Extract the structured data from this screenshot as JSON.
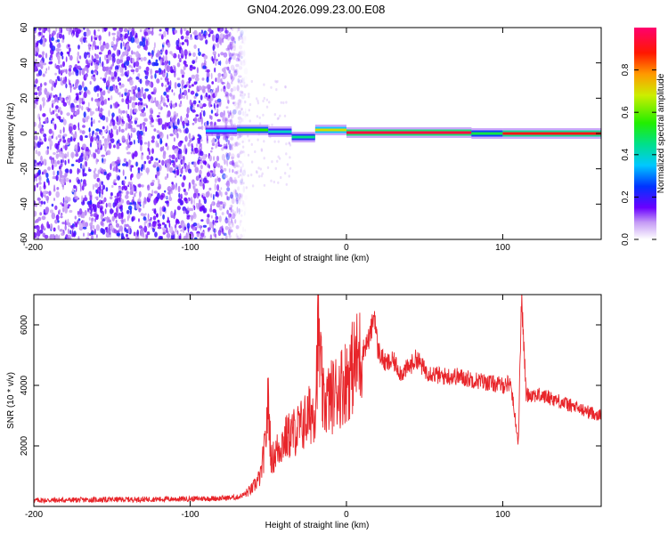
{
  "figure": {
    "title": "GN04.2026.099.23.00.E08"
  },
  "chart_data": [
    {
      "type": "heatmap",
      "xlabel": "Height of straight line (km)",
      "ylabel": "Frequency (Hz)",
      "xlim": [
        -200,
        163
      ],
      "ylim": [
        -60,
        60
      ],
      "xticks": [
        -200,
        -100,
        0,
        100
      ],
      "yticks": [
        -60,
        -40,
        -20,
        0,
        20,
        40,
        60
      ],
      "colorbar": {
        "label": "Normalized spectral amplitude",
        "range": [
          0,
          1
        ],
        "ticks": [
          "0.0",
          "0.2",
          "0.4",
          "0.6",
          "0.8"
        ]
      },
      "noise_region_x": [
        -200,
        -70
      ],
      "carrier_segments": [
        {
          "x0": -90,
          "x1": -70,
          "y": 1.5,
          "amp": 0.35
        },
        {
          "x0": -70,
          "x1": -50,
          "y": 2.0,
          "amp": 0.55
        },
        {
          "x0": -50,
          "x1": -35,
          "y": 1.0,
          "amp": 0.4
        },
        {
          "x0": -35,
          "x1": -20,
          "y": -2.0,
          "amp": 0.45
        },
        {
          "x0": -20,
          "x1": 0,
          "y": 2.0,
          "amp": 0.7
        },
        {
          "x0": 0,
          "x1": 80,
          "y": 0.5,
          "amp": 0.95
        },
        {
          "x0": 80,
          "x1": 100,
          "y": 0.0,
          "amp": 0.5
        },
        {
          "x0": 100,
          "x1": 163,
          "y": 0.0,
          "amp": 0.9
        }
      ]
    },
    {
      "type": "line",
      "xlabel": "Height of straight line (km)",
      "ylabel": "SNR (10 * v/v)",
      "xlim": [
        -200,
        163
      ],
      "ylim": [
        0,
        7000
      ],
      "xticks": [
        -200,
        -100,
        0,
        100
      ],
      "yticks": [
        2000,
        4000,
        6000
      ],
      "series": [
        {
          "color": "#e8252a",
          "x": [
            -200,
            -180,
            -160,
            -140,
            -120,
            -100,
            -80,
            -70,
            -65,
            -60,
            -55,
            -52,
            -50,
            -48,
            -45,
            -40,
            -35,
            -30,
            -25,
            -20,
            -18,
            -15,
            -10,
            -5,
            0,
            5,
            10,
            15,
            18,
            20,
            25,
            30,
            35,
            40,
            45,
            50,
            60,
            70,
            80,
            90,
            100,
            105,
            110,
            112,
            115,
            120,
            130,
            140,
            150,
            163
          ],
          "values": [
            200,
            210,
            220,
            230,
            240,
            250,
            270,
            300,
            400,
            600,
            1000,
            2000,
            3500,
            1500,
            1800,
            2200,
            2400,
            2600,
            2900,
            3300,
            5800,
            3400,
            3600,
            3900,
            4200,
            4700,
            5100,
            5600,
            6400,
            5200,
            4700,
            4800,
            4400,
            4600,
            4900,
            4500,
            4300,
            4300,
            4200,
            4100,
            4000,
            4100,
            2100,
            6900,
            3700,
            3700,
            3600,
            3400,
            3200,
            3000
          ]
        }
      ]
    }
  ]
}
